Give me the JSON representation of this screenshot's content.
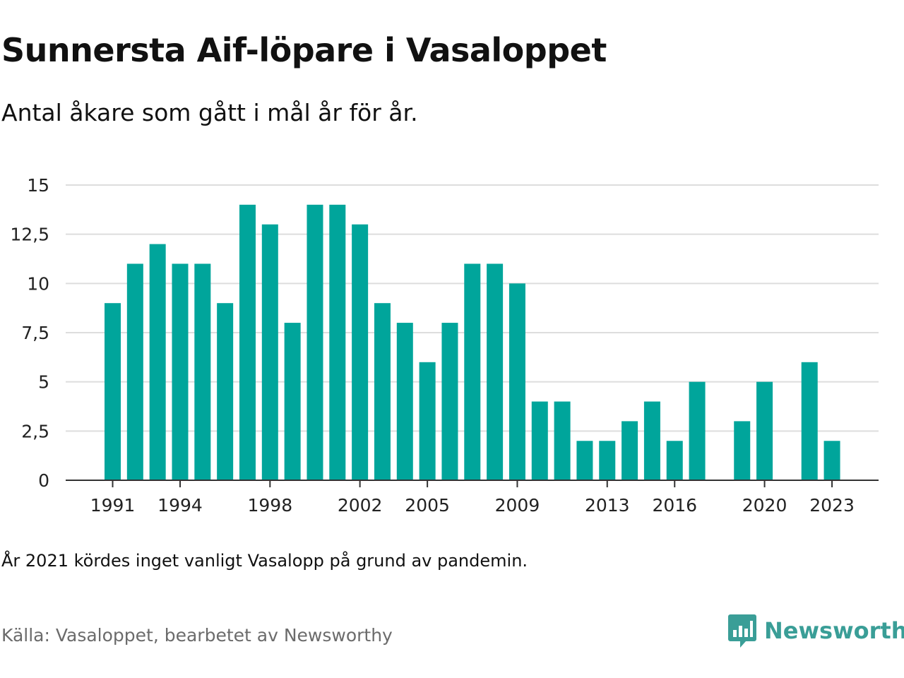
{
  "title": "Sunnersta Aif-löpare i Vasaloppet",
  "subtitle": "Antal åkare som gått i mål år för år.",
  "note": "År 2021 kördes inget vanligt Vasalopp på grund av pandemin.",
  "source": "Källa: Vasaloppet, bearbetet av Newsworthy",
  "brand": {
    "name": "Newsworthy",
    "logo_icon": "bar-chart-speech-bubble-icon"
  },
  "colors": {
    "bar": "#00a59b",
    "grid": "#dddddd",
    "axis": "#333333",
    "brand": "#3a9e97",
    "text": "#111111",
    "muted": "#6b6b6b"
  },
  "chart_data": {
    "type": "bar",
    "title": "Sunnersta Aif-löpare i Vasaloppet",
    "subtitle": "Antal åkare som gått i mål år för år.",
    "xlabel": "",
    "ylabel": "",
    "ylim": [
      0,
      15
    ],
    "yticks": [
      0,
      2.5,
      5,
      7.5,
      10,
      12.5,
      15
    ],
    "ytick_labels": [
      "0",
      "2,5",
      "5",
      "7,5",
      "10",
      "12,5",
      "15"
    ],
    "xticks": [
      1991,
      1994,
      1998,
      2002,
      2005,
      2009,
      2013,
      2016,
      2020,
      2023
    ],
    "grid": true,
    "categories": [
      1991,
      1992,
      1993,
      1994,
      1995,
      1996,
      1997,
      1998,
      1999,
      2000,
      2001,
      2002,
      2003,
      2004,
      2005,
      2006,
      2007,
      2008,
      2009,
      2010,
      2011,
      2012,
      2013,
      2014,
      2015,
      2016,
      2017,
      2018,
      2019,
      2020,
      2021,
      2022,
      2023
    ],
    "values": [
      9,
      11,
      12,
      11,
      11,
      9,
      14,
      13,
      8,
      14,
      14,
      13,
      9,
      8,
      6,
      8,
      11,
      11,
      10,
      4,
      4,
      2,
      2,
      3,
      4,
      2,
      5,
      null,
      3,
      5,
      null,
      6,
      2
    ]
  }
}
